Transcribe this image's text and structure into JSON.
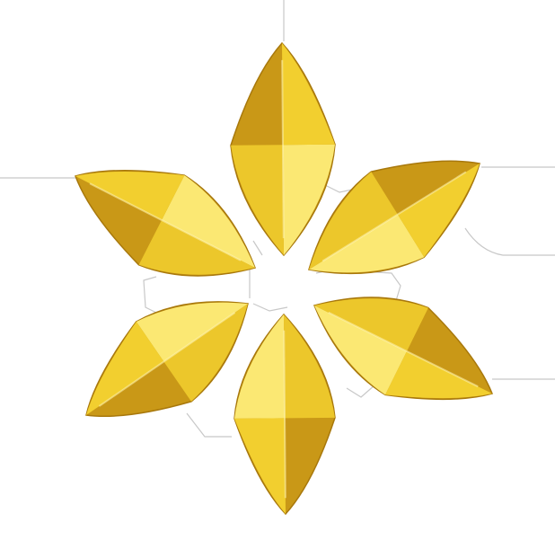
{
  "image": {
    "subject": "six-petal-gold-flower-ornament",
    "background_color": "#ffffff",
    "colors": {
      "petal_light": "#fbe873",
      "petal_mid": "#f2cf2f",
      "petal_dark": "#c99817",
      "petal_shadow": "#a8780c",
      "outline_line": "#c8c8c8"
    },
    "petal_count": 6
  }
}
